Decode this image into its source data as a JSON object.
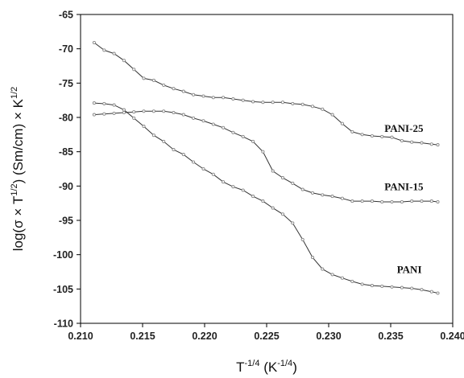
{
  "chart_data": {
    "type": "line",
    "title": "",
    "xlabel": "T-1/4 (K-1/4)",
    "ylabel": "log(σ × T1/2) (Sm/cm) × K1/2",
    "xlabel_parts": {
      "main": "T",
      "sup1": "-1/4",
      "mid": " (K",
      "sup2": "-1/4",
      "end": ")"
    },
    "ylabel_parts": {
      "a": "log(σ",
      "b": " × T",
      "sup1": "1/2",
      "c": ") (Sm/cm) × K",
      "sup2": "1/2"
    },
    "xlim": [
      0.21,
      0.24
    ],
    "ylim": [
      -110,
      -65
    ],
    "xticks": [
      "0.210",
      "0.215",
      "0.220",
      "0.225",
      "0.230",
      "0.235",
      "0.240"
    ],
    "yticks": [
      "-65",
      "-70",
      "-75",
      "-80",
      "-85",
      "-90",
      "-95",
      "-100",
      "-105",
      "-110"
    ],
    "grid": false,
    "legend": "none",
    "marker_color": "#888888",
    "line_color": "#333333",
    "series": [
      {
        "name": "PANI-25",
        "x": [
          0.2111,
          0.2119,
          0.2127,
          0.2135,
          0.2143,
          0.2151,
          0.2159,
          0.2167,
          0.2175,
          0.2183,
          0.2191,
          0.2199,
          0.2207,
          0.2215,
          0.2223,
          0.2231,
          0.2239,
          0.2247,
          0.2255,
          0.2263,
          0.2271,
          0.2279,
          0.2287,
          0.2295,
          0.2303,
          0.2311,
          0.2319,
          0.2327,
          0.2335,
          0.2343,
          0.2351,
          0.2359,
          0.2367,
          0.2375,
          0.2383,
          0.2388
        ],
        "y": [
          -69.1,
          -70.2,
          -70.7,
          -71.7,
          -73.0,
          -74.3,
          -74.6,
          -75.3,
          -75.8,
          -76.2,
          -76.7,
          -76.9,
          -77.1,
          -77.1,
          -77.3,
          -77.5,
          -77.7,
          -77.8,
          -77.8,
          -77.8,
          -78.0,
          -78.1,
          -78.4,
          -78.8,
          -79.6,
          -80.9,
          -82.1,
          -82.5,
          -82.7,
          -82.8,
          -82.9,
          -83.4,
          -83.6,
          -83.7,
          -83.9,
          -84.0
        ]
      },
      {
        "name": "PANI-15",
        "x": [
          0.2111,
          0.2119,
          0.2127,
          0.2135,
          0.2143,
          0.2151,
          0.2159,
          0.2167,
          0.2175,
          0.2183,
          0.2191,
          0.2199,
          0.2207,
          0.2215,
          0.2223,
          0.2231,
          0.2239,
          0.2247,
          0.2255,
          0.2263,
          0.2271,
          0.2279,
          0.2287,
          0.2295,
          0.2303,
          0.2311,
          0.2319,
          0.2327,
          0.2335,
          0.2343,
          0.2351,
          0.2359,
          0.2367,
          0.2375,
          0.2383,
          0.2388
        ],
        "y": [
          -79.6,
          -79.5,
          -79.4,
          -79.3,
          -79.2,
          -79.1,
          -79.1,
          -79.1,
          -79.3,
          -79.6,
          -80.1,
          -80.5,
          -81.0,
          -81.5,
          -82.2,
          -82.8,
          -83.5,
          -85.0,
          -87.8,
          -88.8,
          -89.6,
          -90.5,
          -91.0,
          -91.3,
          -91.5,
          -91.8,
          -92.2,
          -92.2,
          -92.2,
          -92.3,
          -92.3,
          -92.3,
          -92.2,
          -92.2,
          -92.2,
          -92.3
        ]
      },
      {
        "name": "PANI",
        "x": [
          0.2111,
          0.2119,
          0.2127,
          0.2135,
          0.2143,
          0.2151,
          0.2159,
          0.2167,
          0.2175,
          0.2183,
          0.2191,
          0.2199,
          0.2207,
          0.2215,
          0.2223,
          0.2231,
          0.2239,
          0.2247,
          0.2255,
          0.2263,
          0.2271,
          0.2279,
          0.2287,
          0.2295,
          0.2303,
          0.2311,
          0.2319,
          0.2327,
          0.2335,
          0.2343,
          0.2351,
          0.2359,
          0.2367,
          0.2375,
          0.2383,
          0.2388
        ],
        "y": [
          -77.9,
          -78.0,
          -78.2,
          -78.9,
          -80.1,
          -81.3,
          -82.6,
          -83.5,
          -84.7,
          -85.4,
          -86.5,
          -87.5,
          -88.3,
          -89.4,
          -90.1,
          -90.6,
          -91.5,
          -92.2,
          -93.2,
          -94.1,
          -95.4,
          -97.8,
          -100.4,
          -102.1,
          -102.9,
          -103.4,
          -103.9,
          -104.3,
          -104.5,
          -104.6,
          -104.7,
          -104.8,
          -104.9,
          -105.1,
          -105.4,
          -105.6
        ]
      }
    ],
    "series_labels": [
      {
        "text": "PANI-25",
        "x": 0.2345,
        "y": -82.1
      },
      {
        "text": "PANI-15",
        "x": 0.2345,
        "y": -90.6
      },
      {
        "text": "PANI",
        "x": 0.2355,
        "y": -102.7
      }
    ]
  }
}
